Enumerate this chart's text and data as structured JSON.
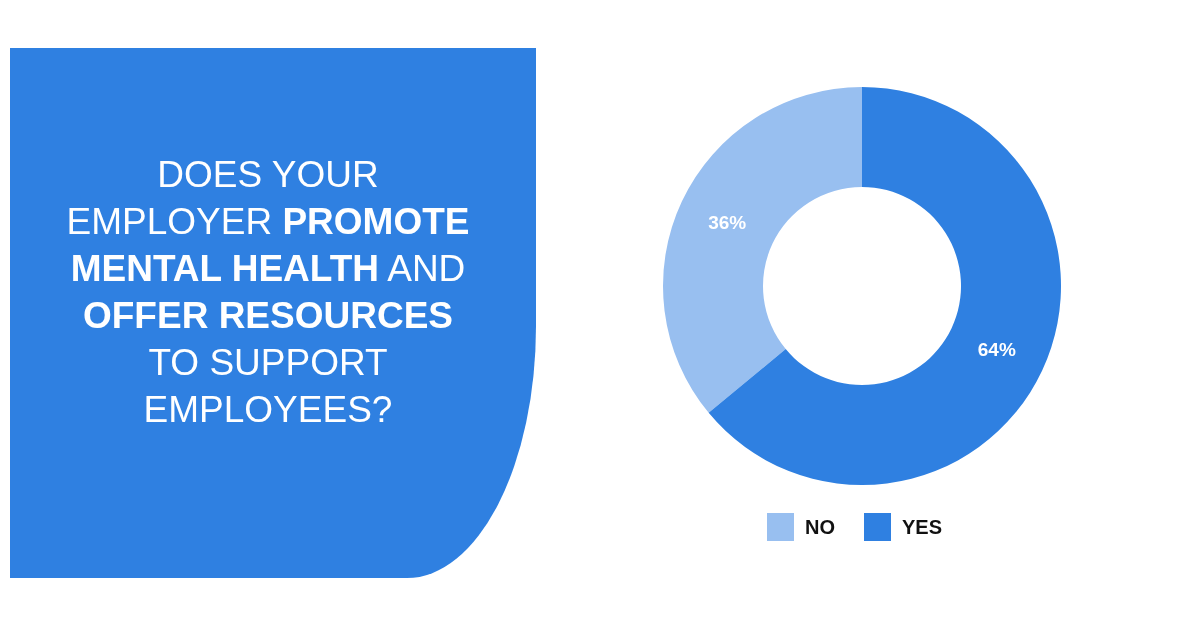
{
  "chart_data": {
    "type": "donut",
    "title": "DOES YOUR EMPLOYER PROMOTE MENTAL HEALTH AND OFFER RESOURCES TO SUPPORT EMPLOYEES?",
    "categories": [
      "NO",
      "YES"
    ],
    "values": [
      36,
      64
    ],
    "colors": [
      "#98bff0",
      "#2f80e1"
    ],
    "value_labels": [
      "36%",
      "64%"
    ],
    "legend": "bottom"
  }
}
